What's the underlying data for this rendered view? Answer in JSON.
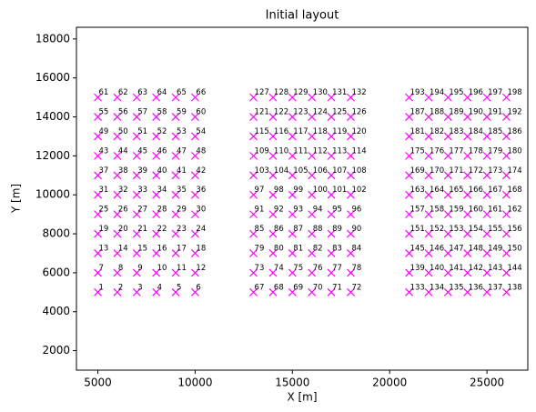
{
  "chart_data": {
    "type": "scatter",
    "title": "Initial layout",
    "x_label": "X [m]",
    "y_label": "Y [m]",
    "color": "#ff00ff",
    "marker": "x",
    "xlim": [
      3900,
      27100
    ],
    "ylim": [
      1000,
      18600
    ],
    "xticks": [
      5000,
      10000,
      15000,
      20000,
      25000
    ],
    "yticks": [
      2000,
      4000,
      6000,
      8000,
      10000,
      12000,
      14000,
      16000,
      18000
    ],
    "x": [
      5000,
      6000,
      7000,
      8000,
      9000,
      10000,
      5000,
      6000,
      7000,
      8000,
      9000,
      10000,
      5000,
      6000,
      7000,
      8000,
      9000,
      10000,
      5000,
      6000,
      7000,
      8000,
      9000,
      10000,
      5000,
      6000,
      7000,
      8000,
      9000,
      10000,
      5000,
      6000,
      7000,
      8000,
      9000,
      10000,
      5000,
      6000,
      7000,
      8000,
      9000,
      10000,
      5000,
      6000,
      7000,
      8000,
      9000,
      10000,
      5000,
      6000,
      7000,
      8000,
      9000,
      10000,
      5000,
      6000,
      7000,
      8000,
      9000,
      10000,
      5000,
      6000,
      7000,
      8000,
      9000,
      10000,
      13000,
      14000,
      15000,
      16000,
      17000,
      18000,
      13000,
      14000,
      15000,
      16000,
      17000,
      18000,
      13000,
      14000,
      15000,
      16000,
      17000,
      18000,
      13000,
      14000,
      15000,
      16000,
      17000,
      18000,
      13000,
      14000,
      15000,
      16000,
      17000,
      18000,
      13000,
      14000,
      15000,
      16000,
      17000,
      18000,
      13000,
      14000,
      15000,
      16000,
      17000,
      18000,
      13000,
      14000,
      15000,
      16000,
      17000,
      18000,
      13000,
      14000,
      15000,
      16000,
      17000,
      18000,
      13000,
      14000,
      15000,
      16000,
      17000,
      18000,
      13000,
      14000,
      15000,
      16000,
      17000,
      18000,
      21000,
      22000,
      23000,
      24000,
      25000,
      26000,
      21000,
      22000,
      23000,
      24000,
      25000,
      26000,
      21000,
      22000,
      23000,
      24000,
      25000,
      26000,
      21000,
      22000,
      23000,
      24000,
      25000,
      26000,
      21000,
      22000,
      23000,
      24000,
      25000,
      26000,
      21000,
      22000,
      23000,
      24000,
      25000,
      26000,
      21000,
      22000,
      23000,
      24000,
      25000,
      26000,
      21000,
      22000,
      23000,
      24000,
      25000,
      26000,
      21000,
      22000,
      23000,
      24000,
      25000,
      26000,
      21000,
      22000,
      23000,
      24000,
      25000,
      26000,
      21000,
      22000,
      23000,
      24000,
      25000,
      26000
    ],
    "y": [
      5000,
      5000,
      5000,
      5000,
      5000,
      5000,
      6000,
      6000,
      6000,
      6000,
      6000,
      6000,
      7000,
      7000,
      7000,
      7000,
      7000,
      7000,
      8000,
      8000,
      8000,
      8000,
      8000,
      8000,
      9000,
      9000,
      9000,
      9000,
      9000,
      9000,
      10000,
      10000,
      10000,
      10000,
      10000,
      10000,
      11000,
      11000,
      11000,
      11000,
      11000,
      11000,
      12000,
      12000,
      12000,
      12000,
      12000,
      12000,
      13000,
      13000,
      13000,
      13000,
      13000,
      13000,
      14000,
      14000,
      14000,
      14000,
      14000,
      14000,
      15000,
      15000,
      15000,
      15000,
      15000,
      15000,
      5000,
      5000,
      5000,
      5000,
      5000,
      5000,
      6000,
      6000,
      6000,
      6000,
      6000,
      6000,
      7000,
      7000,
      7000,
      7000,
      7000,
      7000,
      8000,
      8000,
      8000,
      8000,
      8000,
      8000,
      9000,
      9000,
      9000,
      9000,
      9000,
      9000,
      10000,
      10000,
      10000,
      10000,
      10000,
      10000,
      11000,
      11000,
      11000,
      11000,
      11000,
      11000,
      12000,
      12000,
      12000,
      12000,
      12000,
      12000,
      13000,
      13000,
      13000,
      13000,
      13000,
      13000,
      14000,
      14000,
      14000,
      14000,
      14000,
      14000,
      15000,
      15000,
      15000,
      15000,
      15000,
      15000,
      5000,
      5000,
      5000,
      5000,
      5000,
      5000,
      6000,
      6000,
      6000,
      6000,
      6000,
      6000,
      7000,
      7000,
      7000,
      7000,
      7000,
      7000,
      8000,
      8000,
      8000,
      8000,
      8000,
      8000,
      9000,
      9000,
      9000,
      9000,
      9000,
      9000,
      10000,
      10000,
      10000,
      10000,
      10000,
      10000,
      11000,
      11000,
      11000,
      11000,
      11000,
      11000,
      12000,
      12000,
      12000,
      12000,
      12000,
      12000,
      13000,
      13000,
      13000,
      13000,
      13000,
      13000,
      14000,
      14000,
      14000,
      14000,
      14000,
      14000,
      15000,
      15000,
      15000,
      15000,
      15000,
      15000
    ],
    "labels": [
      1,
      2,
      3,
      4,
      5,
      6,
      7,
      8,
      9,
      10,
      11,
      12,
      13,
      14,
      15,
      16,
      17,
      18,
      19,
      20,
      21,
      22,
      23,
      24,
      25,
      26,
      27,
      28,
      29,
      30,
      31,
      32,
      33,
      34,
      35,
      36,
      37,
      38,
      39,
      40,
      41,
      42,
      43,
      44,
      45,
      46,
      47,
      48,
      49,
      50,
      51,
      52,
      53,
      54,
      55,
      56,
      57,
      58,
      59,
      60,
      61,
      62,
      63,
      64,
      65,
      66,
      67,
      68,
      69,
      70,
      71,
      72,
      73,
      74,
      75,
      76,
      77,
      78,
      79,
      80,
      81,
      82,
      83,
      84,
      85,
      86,
      87,
      88,
      89,
      90,
      91,
      92,
      93,
      94,
      95,
      96,
      97,
      98,
      99,
      100,
      101,
      102,
      103,
      104,
      105,
      106,
      107,
      108,
      109,
      110,
      111,
      112,
      113,
      114,
      115,
      116,
      117,
      118,
      119,
      120,
      121,
      122,
      123,
      124,
      125,
      126,
      127,
      128,
      129,
      130,
      131,
      132,
      133,
      134,
      135,
      136,
      137,
      138,
      139,
      140,
      141,
      142,
      143,
      144,
      145,
      146,
      147,
      148,
      149,
      150,
      151,
      152,
      153,
      154,
      155,
      156,
      157,
      158,
      159,
      160,
      161,
      162,
      163,
      164,
      165,
      166,
      167,
      168,
      169,
      170,
      171,
      172,
      173,
      174,
      175,
      176,
      177,
      178,
      179,
      180,
      181,
      182,
      183,
      184,
      185,
      186,
      187,
      188,
      189,
      190,
      191,
      192,
      193,
      194,
      195,
      196,
      197,
      198
    ]
  }
}
